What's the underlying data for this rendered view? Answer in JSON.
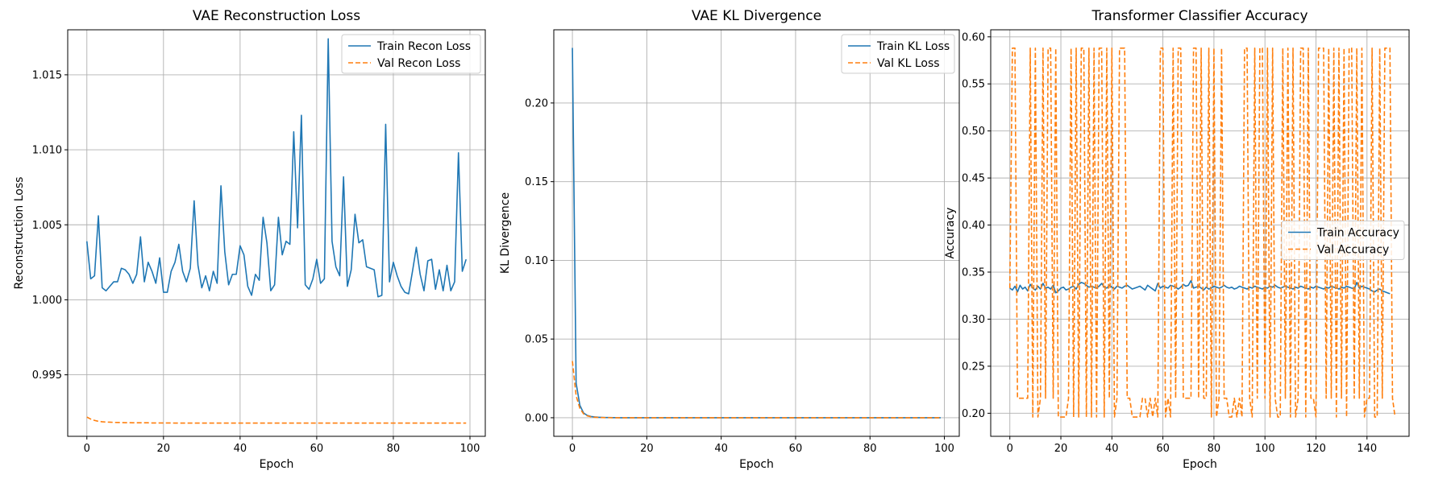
{
  "chart_data": [
    {
      "type": "line",
      "title": "VAE Reconstruction Loss",
      "xlabel": "Epoch",
      "ylabel": "Reconstruction Loss",
      "xlim": [
        -5,
        104
      ],
      "ylim": [
        0.9909,
        1.018
      ],
      "xticks": [
        0,
        20,
        40,
        60,
        80,
        100
      ],
      "yticks": [
        0.995,
        1.0,
        1.005,
        1.01,
        1.015
      ],
      "ytick_labels": [
        "0.995",
        "1.000",
        "1.005",
        "1.010",
        "1.015"
      ],
      "grid": true,
      "legend": "top-right",
      "series": [
        {
          "name": "Train Recon Loss",
          "style": "solid",
          "color": "#1f77b4",
          "values": [
            1.0039,
            1.0014,
            1.0016,
            1.0056,
            1.0008,
            1.0006,
            1.0009,
            1.0012,
            1.0012,
            1.0021,
            1.002,
            1.0017,
            1.0011,
            1.0017,
            1.0042,
            1.0012,
            1.0025,
            1.0019,
            1.0011,
            1.0028,
            1.0005,
            1.0005,
            1.0019,
            1.0025,
            1.0037,
            1.0019,
            1.0012,
            1.0021,
            1.0066,
            1.0023,
            1.0008,
            1.0016,
            1.0006,
            1.0019,
            1.0011,
            1.0076,
            1.0032,
            1.001,
            1.0017,
            1.0017,
            1.0036,
            1.003,
            1.0009,
            1.0003,
            1.0017,
            1.0013,
            1.0055,
            1.0038,
            1.0006,
            1.001,
            1.0055,
            1.003,
            1.0039,
            1.0037,
            1.0112,
            1.0048,
            1.0123,
            1.001,
            1.0007,
            1.0014,
            1.0027,
            1.0011,
            1.0014,
            1.0174,
            1.0039,
            1.0022,
            1.0016,
            1.0082,
            1.0009,
            1.002,
            1.0057,
            1.0038,
            1.004,
            1.0022,
            1.0021,
            1.002,
            1.0002,
            1.0003,
            1.0117,
            1.0012,
            1.0025,
            1.0016,
            1.0009,
            1.0005,
            1.0004,
            1.0019,
            1.0035,
            1.0017,
            1.0006,
            1.0026,
            1.0027,
            1.0007,
            1.002,
            1.0006,
            1.0023,
            1.0006,
            1.0012,
            1.0098,
            1.0019,
            1.0027
          ]
        },
        {
          "name": "Val Recon Loss",
          "style": "dashed",
          "color": "#ff7f0e",
          "values": [
            0.99218,
            0.99205,
            0.99196,
            0.9919,
            0.99187,
            0.99185,
            0.99184,
            0.99183,
            0.99182,
            0.99182,
            0.99181,
            0.99181,
            0.9918,
            0.9918,
            0.9918,
            0.9918,
            0.9918,
            0.99179,
            0.99179,
            0.99179,
            0.99179,
            0.99179,
            0.99179,
            0.99178,
            0.99178,
            0.99178,
            0.99178,
            0.99178,
            0.99178,
            0.99178,
            0.99178,
            0.99178,
            0.99178,
            0.99178,
            0.99178,
            0.99178,
            0.99178,
            0.99178,
            0.99178,
            0.99178,
            0.99178,
            0.99178,
            0.99178,
            0.99178,
            0.99178,
            0.99178,
            0.99178,
            0.99178,
            0.99178,
            0.99178,
            0.99178,
            0.99178,
            0.99178,
            0.99178,
            0.99178,
            0.99178,
            0.99178,
            0.99178,
            0.99178,
            0.99178,
            0.99178,
            0.99178,
            0.99178,
            0.99178,
            0.99178,
            0.99178,
            0.99178,
            0.99178,
            0.99178,
            0.99178,
            0.99178,
            0.99178,
            0.99178,
            0.99178,
            0.99178,
            0.99178,
            0.99178,
            0.99178,
            0.99178,
            0.99178,
            0.99178,
            0.99178,
            0.99178,
            0.99178,
            0.99178,
            0.99178,
            0.99178,
            0.99178,
            0.99178,
            0.99178,
            0.99178,
            0.99178,
            0.99178,
            0.99178,
            0.99178,
            0.99178,
            0.99178,
            0.99178,
            0.99178,
            0.99178
          ]
        }
      ]
    },
    {
      "type": "line",
      "title": "VAE KL Divergence",
      "xlabel": "Epoch",
      "ylabel": "KL Divergence",
      "xlim": [
        -5,
        104
      ],
      "ylim": [
        -0.0118,
        0.2465
      ],
      "xticks": [
        0,
        20,
        40,
        60,
        80,
        100
      ],
      "yticks": [
        0.0,
        0.05,
        0.1,
        0.15,
        0.2
      ],
      "ytick_labels": [
        "0.00",
        "0.05",
        "0.10",
        "0.15",
        "0.20"
      ],
      "grid": true,
      "legend": "top-right",
      "series": [
        {
          "name": "Train KL Loss",
          "style": "solid",
          "color": "#1f77b4",
          "values": [
            0.235,
            0.022,
            0.008,
            0.003,
            0.0015,
            0.0008,
            0.0005,
            0.0003,
            0.0002,
            0.0001,
            0.0001,
            5e-05,
            3e-05,
            2e-05,
            1e-05,
            0,
            0,
            0,
            0,
            0,
            0,
            0,
            0,
            0,
            0,
            0,
            0,
            0,
            0,
            0,
            0,
            0,
            0,
            0,
            0,
            0,
            0,
            0,
            0,
            0,
            0,
            0,
            0,
            0,
            0,
            0,
            0,
            0,
            0,
            0,
            0,
            0,
            0,
            0,
            0,
            0,
            0,
            0,
            0,
            0,
            0,
            0,
            0,
            0,
            0,
            0,
            0,
            0,
            0,
            0,
            0,
            0,
            0,
            0,
            0,
            0,
            0,
            0,
            0,
            0,
            0,
            0,
            0,
            0,
            0,
            0,
            0,
            0,
            0,
            0,
            0,
            0,
            0,
            0,
            0,
            0,
            0,
            0,
            0,
            0
          ]
        },
        {
          "name": "Val KL Loss",
          "style": "dashed",
          "color": "#ff7f0e",
          "values": [
            0.036,
            0.014,
            0.006,
            0.0025,
            0.0012,
            0.0006,
            0.0003,
            0.0002,
            0.0001,
            5e-05,
            3e-05,
            2e-05,
            1e-05,
            0,
            0,
            0,
            0,
            0,
            0,
            0,
            0,
            0,
            0,
            0,
            0,
            0,
            0,
            0,
            0,
            0,
            0,
            0,
            0,
            0,
            0,
            0,
            0,
            0,
            0,
            0,
            0,
            0,
            0,
            0,
            0,
            0,
            0,
            0,
            0,
            0,
            0,
            0,
            0,
            0,
            0,
            0,
            0,
            0,
            0,
            0,
            0,
            0,
            0,
            0,
            0,
            0,
            0,
            0,
            0,
            0,
            0,
            0,
            0,
            0,
            0,
            0,
            0,
            0,
            0,
            0,
            0,
            0,
            0,
            0,
            0,
            0,
            0,
            0,
            0,
            0,
            0,
            0,
            0,
            0,
            0,
            0,
            0,
            0,
            0,
            0
          ]
        }
      ]
    },
    {
      "type": "line",
      "title": "Transformer Classifier Accuracy",
      "xlabel": "Epoch",
      "ylabel": "Accuracy",
      "xlim": [
        -7.5,
        156.5
      ],
      "ylim": [
        0.1755,
        0.6075
      ],
      "xticks": [
        0,
        20,
        40,
        60,
        80,
        100,
        120,
        140
      ],
      "yticks": [
        0.2,
        0.25,
        0.3,
        0.35,
        0.4,
        0.45,
        0.5,
        0.55,
        0.6
      ],
      "ytick_labels": [
        "0.20",
        "0.25",
        "0.30",
        "0.35",
        "0.40",
        "0.45",
        "0.50",
        "0.55",
        "0.60"
      ],
      "grid": true,
      "legend": "center-right",
      "series": [
        {
          "name": "Train Accuracy",
          "style": "solid",
          "color": "#1f77b4",
          "values": [
            0.333,
            0.331,
            0.335,
            0.329,
            0.336,
            0.332,
            0.334,
            0.33,
            0.337,
            0.333,
            0.331,
            0.335,
            0.332,
            0.338,
            0.333,
            0.334,
            0.332,
            0.336,
            0.328,
            0.33,
            0.333,
            0.334,
            0.331,
            0.332,
            0.334,
            0.335,
            0.332,
            0.337,
            0.339,
            0.338,
            0.336,
            0.334,
            0.335,
            0.334,
            0.333,
            0.335,
            0.338,
            0.334,
            0.333,
            0.336,
            0.334,
            0.332,
            0.335,
            0.334,
            0.333,
            0.335,
            0.336,
            0.334,
            0.332,
            0.333,
            0.334,
            0.335,
            0.333,
            0.331,
            0.336,
            0.334,
            0.332,
            0.33,
            0.338,
            0.333,
            0.335,
            0.334,
            0.333,
            0.336,
            0.335,
            0.334,
            0.332,
            0.334,
            0.337,
            0.335,
            0.336,
            0.341,
            0.333,
            0.334,
            0.335,
            0.333,
            0.331,
            0.334,
            0.332,
            0.333,
            0.335,
            0.334,
            0.333,
            0.334,
            0.336,
            0.334,
            0.333,
            0.334,
            0.332,
            0.333,
            0.335,
            0.334,
            0.333,
            0.332,
            0.334,
            0.333,
            0.335,
            0.334,
            0.333,
            0.332,
            0.334,
            0.333,
            0.335,
            0.334,
            0.336,
            0.334,
            0.333,
            0.334,
            0.335,
            0.334,
            0.333,
            0.332,
            0.334,
            0.333,
            0.335,
            0.334,
            0.333,
            0.332,
            0.334,
            0.333,
            0.335,
            0.334,
            0.333,
            0.332,
            0.334,
            0.333,
            0.335,
            0.334,
            0.333,
            0.332,
            0.334,
            0.333,
            0.335,
            0.334,
            0.333,
            0.332,
            0.339,
            0.333,
            0.335,
            0.334,
            0.333,
            0.332,
            0.33,
            0.329,
            0.331,
            0.332,
            0.33,
            0.329,
            0.328,
            0.327
          ]
        },
        {
          "name": "Val Accuracy",
          "style": "dashed",
          "color": "#ff7f0e",
          "values": [
            0.333,
            0.588,
            0.588,
            0.216,
            0.216,
            0.216,
            0.216,
            0.216,
            0.588,
            0.196,
            0.588,
            0.196,
            0.216,
            0.588,
            0.216,
            0.588,
            0.588,
            0.216,
            0.588,
            0.196,
            0.196,
            0.196,
            0.196,
            0.216,
            0.588,
            0.196,
            0.588,
            0.196,
            0.588,
            0.588,
            0.196,
            0.588,
            0.196,
            0.588,
            0.196,
            0.588,
            0.588,
            0.196,
            0.588,
            0.216,
            0.588,
            0.196,
            0.216,
            0.588,
            0.588,
            0.588,
            0.216,
            0.216,
            0.196,
            0.196,
            0.196,
            0.196,
            0.216,
            0.216,
            0.196,
            0.216,
            0.196,
            0.216,
            0.196,
            0.588,
            0.588,
            0.196,
            0.216,
            0.196,
            0.588,
            0.216,
            0.588,
            0.588,
            0.216,
            0.216,
            0.216,
            0.216,
            0.588,
            0.588,
            0.216,
            0.588,
            0.216,
            0.216,
            0.588,
            0.196,
            0.588,
            0.196,
            0.216,
            0.588,
            0.216,
            0.216,
            0.196,
            0.196,
            0.216,
            0.196,
            0.216,
            0.196,
            0.588,
            0.588,
            0.216,
            0.196,
            0.588,
            0.216,
            0.588,
            0.588,
            0.216,
            0.588,
            0.196,
            0.588,
            0.216,
            0.196,
            0.196,
            0.588,
            0.216,
            0.588,
            0.196,
            0.588,
            0.196,
            0.216,
            0.588,
            0.588,
            0.196,
            0.588,
            0.216,
            0.216,
            0.196,
            0.588,
            0.588,
            0.588,
            0.216,
            0.588,
            0.216,
            0.588,
            0.196,
            0.588,
            0.216,
            0.588,
            0.196,
            0.588,
            0.588,
            0.216,
            0.588,
            0.216,
            0.588,
            0.196,
            0.216,
            0.216,
            0.588,
            0.196,
            0.196,
            0.588,
            0.216,
            0.588,
            0.588,
            0.588,
            0.216,
            0.196
          ]
        }
      ]
    }
  ]
}
